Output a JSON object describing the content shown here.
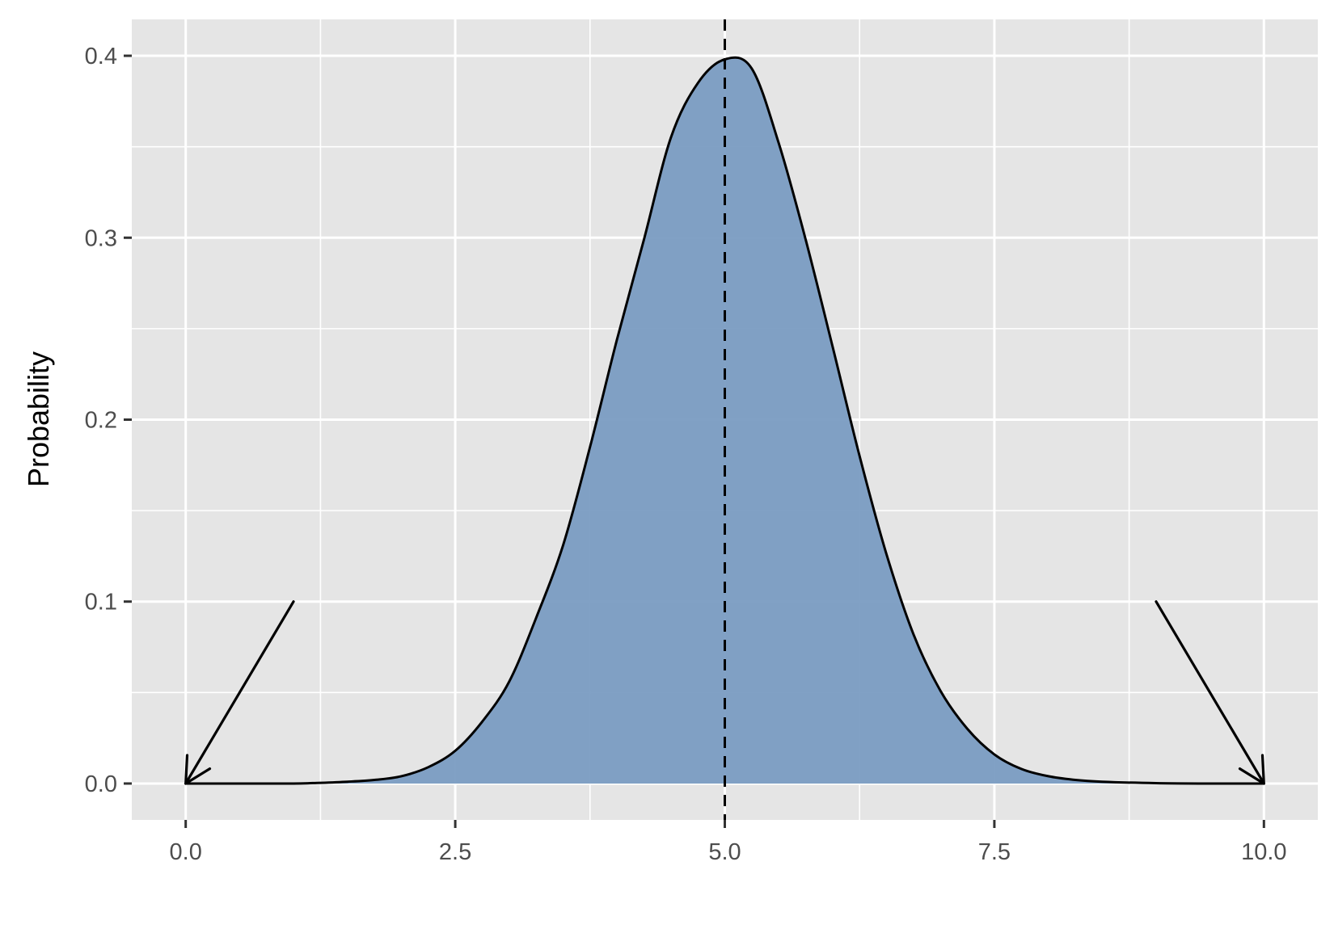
{
  "chart_data": {
    "type": "area",
    "title": "",
    "xlabel": "",
    "ylabel": "Probability",
    "xlim": [
      -0.5,
      10.5
    ],
    "ylim": [
      -0.02,
      0.42
    ],
    "x_ticks": [
      0.0,
      2.5,
      5.0,
      7.5,
      10.0
    ],
    "x_tick_labels": [
      "0.0",
      "2.5",
      "5.0",
      "7.5",
      "10.0"
    ],
    "y_ticks": [
      0.0,
      0.1,
      0.2,
      0.3,
      0.4
    ],
    "y_tick_labels": [
      "0.0",
      "0.1",
      "0.2",
      "0.3",
      "0.4"
    ],
    "grid": true,
    "colors": {
      "panel": "#e5e5e5",
      "grid": "#ffffff",
      "fill": "#7a9cc2",
      "line": "#000000"
    },
    "distribution": {
      "mean": 5.0,
      "sd": 1.0
    },
    "series": [
      {
        "x": [
          0.0,
          0.5,
          1.0,
          1.25,
          1.5,
          1.75,
          2.0,
          2.25,
          2.5,
          2.75,
          3.0,
          3.25,
          3.5,
          3.75,
          4.0,
          4.25,
          4.5,
          4.75,
          5.0,
          5.25,
          5.5,
          5.75,
          6.0,
          6.25,
          6.5,
          6.75,
          7.0,
          7.25,
          7.5,
          7.75,
          8.0,
          8.25,
          8.5,
          9.0,
          9.5,
          10.0
        ],
        "y": [
          0.0,
          0.0,
          0.0,
          0.0004,
          0.001,
          0.002,
          0.004,
          0.009,
          0.018,
          0.034,
          0.056,
          0.091,
          0.131,
          0.185,
          0.244,
          0.299,
          0.355,
          0.385,
          0.398,
          0.393,
          0.352,
          0.299,
          0.24,
          0.18,
          0.126,
          0.082,
          0.051,
          0.03,
          0.016,
          0.008,
          0.004,
          0.002,
          0.001,
          0.0002,
          0.0,
          0.0
        ]
      }
    ],
    "reference_line": {
      "x": 5.0,
      "style": "dashed"
    },
    "annotations": [
      {
        "type": "arrow",
        "from": [
          1.0,
          0.1
        ],
        "to": [
          0.0,
          0.0
        ]
      },
      {
        "type": "arrow",
        "from": [
          9.0,
          0.1
        ],
        "to": [
          10.0,
          0.0
        ]
      }
    ]
  }
}
